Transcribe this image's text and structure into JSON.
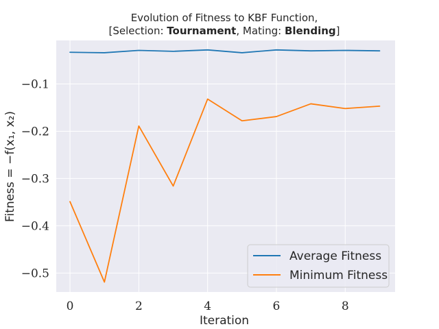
{
  "chart_data": {
    "type": "line",
    "title_line1": "Evolution of Fitness to KBF Function,",
    "title_line2": {
      "pre": "[Selection: ",
      "selection": "Tournament",
      "mid": ", Mating: ",
      "mating": "Blending",
      "post": "]"
    },
    "xlabel": "Iteration",
    "ylabel": "Fitness = −f(x₁, x₂)",
    "x": [
      0,
      1,
      2,
      3,
      4,
      5,
      6,
      7,
      8,
      9
    ],
    "xticks": [
      0,
      2,
      4,
      6,
      8
    ],
    "xtick_labels": [
      "0",
      "2",
      "4",
      "6",
      "8"
    ],
    "yticks": [
      -0.1,
      -0.2,
      -0.3,
      -0.4,
      -0.5
    ],
    "ytick_labels": [
      "−0.1",
      "−0.2",
      "−0.3",
      "−0.4",
      "−0.5"
    ],
    "xlim": [
      -0.4,
      9.45
    ],
    "ylim": [
      -0.54,
      -0.008
    ],
    "grid": true,
    "legend_position": "lower-right",
    "series": [
      {
        "name": "Average Fitness",
        "color": "#1f77b4",
        "values": [
          -0.033,
          -0.034,
          -0.029,
          -0.031,
          -0.028,
          -0.034,
          -0.028,
          -0.03,
          -0.029,
          -0.03
        ]
      },
      {
        "name": "Minimum Fitness",
        "color": "#ff7f0e",
        "values": [
          -0.349,
          -0.519,
          -0.189,
          -0.316,
          -0.132,
          -0.178,
          -0.169,
          -0.142,
          -0.152,
          -0.147
        ]
      }
    ]
  }
}
